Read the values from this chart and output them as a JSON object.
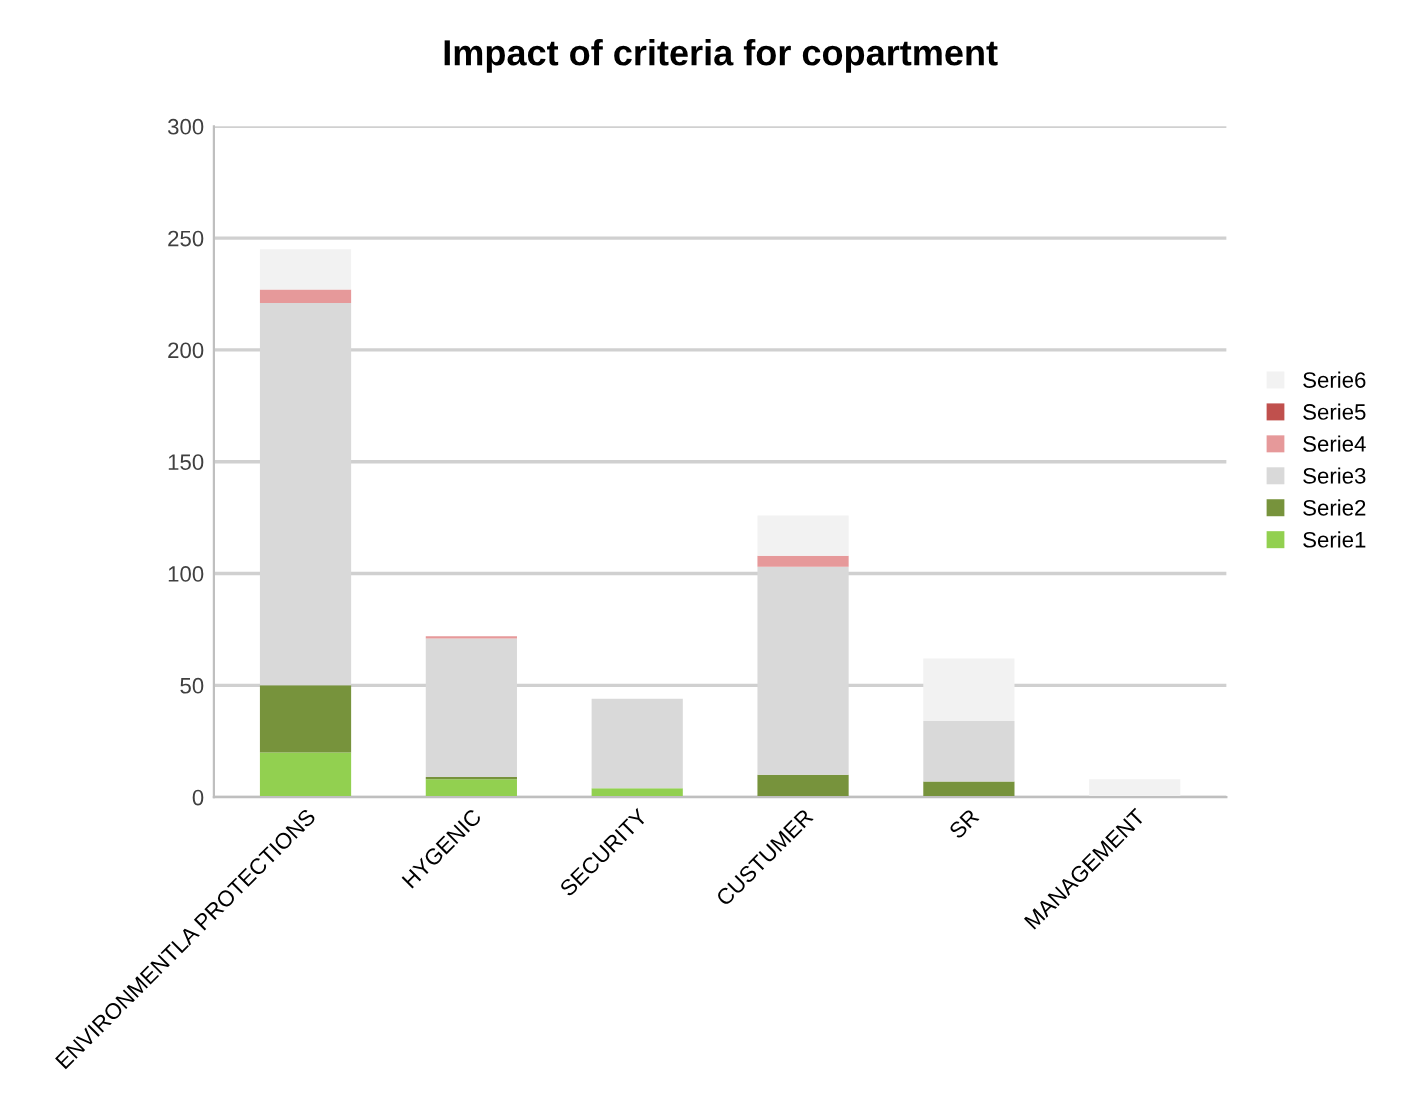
{
  "chart_data": {
    "type": "bar",
    "title": "Impact of criteria for copartment",
    "stacked": true,
    "categories": [
      "ENVIRONMENTLA PROTECTIONS",
      "HYGENIC",
      "SECURITY",
      "CUSTUMER",
      "SR",
      "MANAGEMENT"
    ],
    "series": [
      {
        "name": "Serie1",
        "color": "#92d050",
        "values": [
          20,
          8,
          4,
          0,
          0,
          0
        ]
      },
      {
        "name": "Serie2",
        "color": "#77933c",
        "values": [
          30,
          1,
          0,
          10,
          7,
          0
        ]
      },
      {
        "name": "Serie3",
        "color": "#d9d9d9",
        "values": [
          171,
          62,
          40,
          93,
          27,
          0
        ]
      },
      {
        "name": "Serie4",
        "color": "#e6999a",
        "values": [
          6,
          1,
          0,
          5,
          0,
          0
        ]
      },
      {
        "name": "Serie5",
        "color": "#c0504d",
        "values": [
          0,
          0,
          0,
          0,
          0,
          0
        ]
      },
      {
        "name": "Serie6",
        "color": "#f2f2f2",
        "values": [
          18,
          0,
          0,
          18,
          28,
          8
        ]
      }
    ],
    "ylim": [
      0,
      300
    ],
    "yticks": [
      0,
      50,
      100,
      150,
      200,
      250,
      300
    ],
    "grid": "y",
    "legend": "right"
  }
}
